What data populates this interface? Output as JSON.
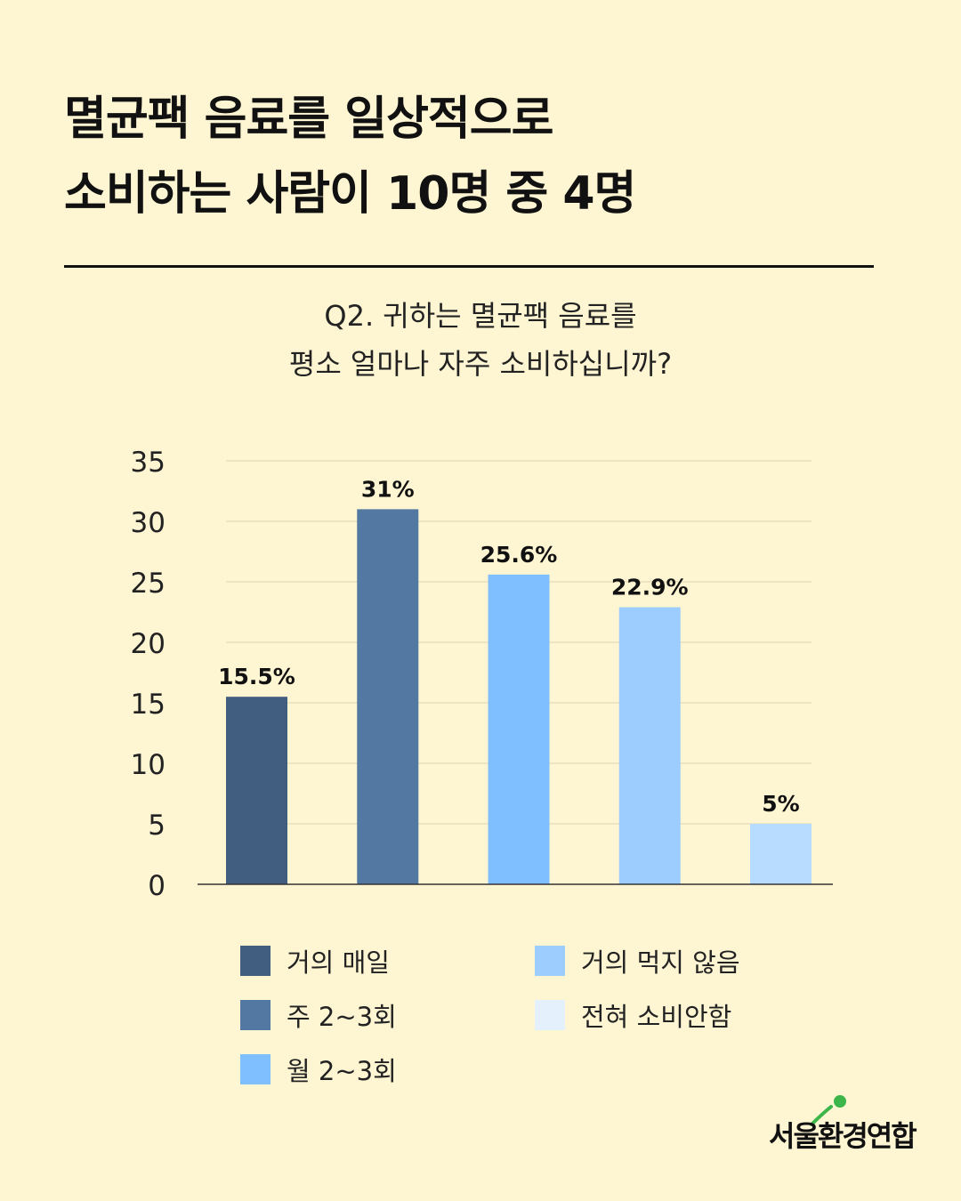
{
  "headline": {
    "line1": "멸균팩 음료를 일상적으로",
    "line2": "소비하는 사람이 10명 중 4명"
  },
  "question": {
    "line1": "Q2. 귀하는 멸균팩 음료를",
    "line2": "평소 얼마나 자주 소비하십니까?"
  },
  "chart_data": {
    "type": "bar",
    "categories": [
      "거의 매일",
      "주 2~3회",
      "월 2~3회",
      "거의 먹지 않음",
      "전혀 소비안함"
    ],
    "values": [
      15.5,
      31,
      25.6,
      22.9,
      5
    ],
    "data_labels": [
      "15.5%",
      "31%",
      "25.6%",
      "22.9%",
      "5%"
    ],
    "colors": [
      "#415E80",
      "#5379A2",
      "#80BFFF",
      "#9DCCFF",
      "#B8DCFF"
    ],
    "ylim": [
      0,
      35
    ],
    "yticks": [
      0,
      5,
      10,
      15,
      20,
      25,
      30,
      35
    ],
    "grid": true,
    "title": "",
    "xlabel": "",
    "ylabel": "",
    "legend_position": "bottom"
  },
  "legend": [
    {
      "label": "거의 매일",
      "color": "#415E80"
    },
    {
      "label": "주 2~3회",
      "color": "#5379A2"
    },
    {
      "label": "월 2~3회",
      "color": "#80BFFF"
    },
    {
      "label": "거의 먹지 않음",
      "color": "#9DCCFF"
    },
    {
      "label": "전혀 소비안함",
      "color": "#E4F1FD"
    }
  ],
  "logo": {
    "text": "서울환경연합",
    "colors": [
      "#3CB64A",
      "#111111"
    ]
  }
}
